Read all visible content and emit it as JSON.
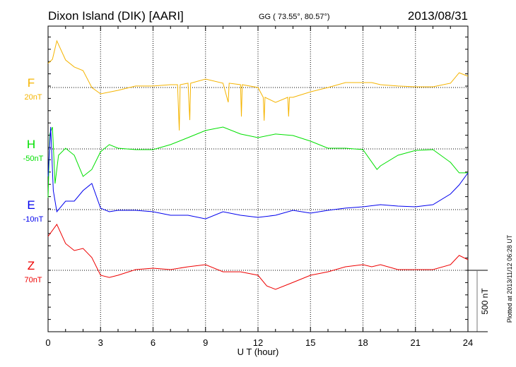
{
  "chart_data": {
    "type": "line",
    "title": "Dixon Island (DIK)  [AARI]",
    "coords": "GG ( 73.55°,  80.57°)",
    "date": "2013/08/31",
    "xlabel": "U T (hour)",
    "xlim": [
      0,
      24
    ],
    "xticks": [
      "0",
      "3",
      "6",
      "9",
      "12",
      "15",
      "18",
      "21",
      "24"
    ],
    "scale_bar_label": "500 nT",
    "scale_bar_nT": 500,
    "footer": "Plotted at 2013/11/12 06:28 UT",
    "grid": true,
    "series": [
      {
        "name": "F",
        "offset_label": "20nT",
        "color": "#f5b400",
        "x": [
          0,
          0.25,
          0.5,
          1,
          1.5,
          2,
          2.5,
          3,
          4,
          5,
          6,
          7,
          7.4,
          7.5,
          7.55,
          8,
          8.1,
          8.15,
          9,
          10,
          10.3,
          10.35,
          11,
          11.05,
          11.1,
          12,
          12.3,
          12.35,
          12.4,
          13,
          13.7,
          13.75,
          13.8,
          14,
          15,
          16,
          17,
          18,
          18.5,
          19,
          20,
          21,
          22,
          23,
          23.5,
          24
        ],
        "y": [
          196,
          230,
          380,
          224,
          167,
          138,
          0,
          -52,
          -23,
          12,
          12,
          23,
          23,
          -350,
          23,
          35,
          -265,
          35,
          69,
          35,
          -120,
          35,
          23,
          -236,
          23,
          0,
          -80,
          -270,
          -80,
          -121,
          -80,
          -236,
          -80,
          -80,
          -35,
          0,
          40,
          40,
          40,
          23,
          12,
          6,
          6,
          35,
          120,
          92
        ]
      },
      {
        "name": "H",
        "offset_label": "-50nT",
        "color": "#00e000",
        "x": [
          0,
          0.1,
          0.25,
          0.4,
          0.6,
          1,
          1.5,
          2,
          2.5,
          3,
          3.5,
          4,
          5,
          6,
          7,
          8,
          9,
          10,
          11,
          12,
          13,
          14,
          15,
          16,
          17,
          18,
          18.8,
          19,
          20,
          21,
          22,
          23,
          23.5,
          24
        ],
        "y": [
          -397,
          121,
          178,
          -282,
          -52,
          6,
          -52,
          -224,
          -167,
          -23,
          35,
          6,
          -6,
          -6,
          35,
          92,
          150,
          178,
          121,
          92,
          121,
          109,
          63,
          6,
          6,
          -6,
          -167,
          -138,
          -52,
          -12,
          -6,
          -109,
          -195,
          -195
        ]
      },
      {
        "name": "E",
        "offset_label": "-10nT",
        "color": "#0000ee",
        "x": [
          0,
          0.15,
          0.3,
          0.5,
          1,
          1.5,
          2,
          2.5,
          3,
          3.5,
          4,
          5,
          6,
          7,
          8,
          9,
          10,
          11,
          12,
          13,
          14,
          15,
          16,
          17,
          18,
          19,
          20,
          21,
          22,
          23,
          23.5,
          24
        ],
        "y": [
          270,
          673,
          155,
          -17,
          69,
          69,
          155,
          213,
          12,
          -17,
          -6,
          -6,
          -17,
          -46,
          -46,
          -75,
          -17,
          -46,
          -63,
          -46,
          -6,
          -29,
          -6,
          12,
          23,
          40,
          29,
          23,
          40,
          127,
          201,
          299
        ]
      },
      {
        "name": "Z",
        "offset_label": "70nT",
        "color": "#ee0000",
        "x": [
          0,
          0.5,
          1,
          1.5,
          2,
          2.5,
          3,
          3.5,
          4,
          5,
          6,
          7,
          8,
          9,
          10,
          11,
          12,
          12.5,
          13,
          14,
          15,
          16,
          17,
          18,
          18.5,
          19,
          20,
          21,
          22,
          23,
          23.5,
          24
        ],
        "y": [
          276,
          374,
          218,
          161,
          178,
          104,
          -40,
          -58,
          -40,
          6,
          17,
          6,
          29,
          46,
          -12,
          -12,
          -40,
          -127,
          -155,
          -98,
          -40,
          -12,
          29,
          46,
          29,
          46,
          6,
          6,
          6,
          46,
          121,
          86
        ]
      }
    ]
  }
}
